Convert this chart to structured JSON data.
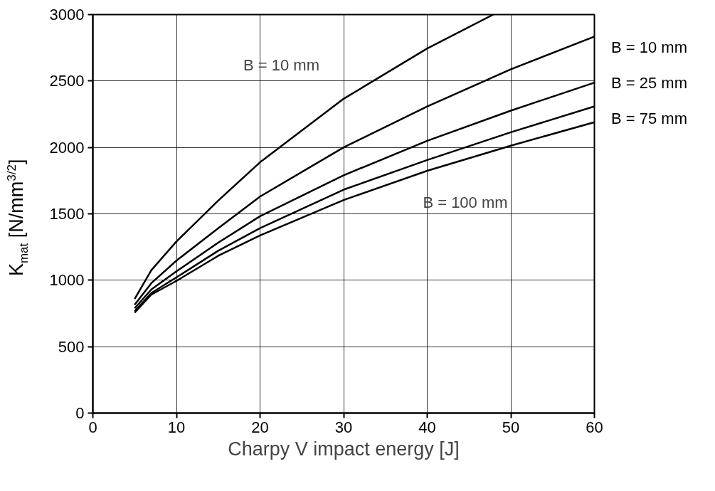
{
  "chart_data": {
    "type": "line",
    "xlabel": "Charpy V impact energy [J]",
    "ylabel": "K$_{mat}$ [N/mm$^{3/2}$]",
    "x": [
      5,
      7,
      10,
      15,
      20,
      30,
      40,
      47.9
    ],
    "series": [
      {
        "color": "#000000",
        "values": [
          859,
          1076,
          1292,
          1600,
          1888,
          2366,
          2745,
          3000
        ]
      },
      {
        "color": "#000000",
        "x": [
          5,
          7,
          10,
          15,
          20,
          30,
          40,
          50,
          60
        ],
        "values": [
          816,
          978,
          1148,
          1392,
          1630,
          2000,
          2308,
          2588,
          2835
        ]
      },
      {
        "color": "#000000",
        "x": [
          5,
          7,
          10,
          15,
          20,
          30,
          40,
          50,
          60
        ],
        "values": [
          789,
          931,
          1067,
          1283,
          1482,
          1790,
          2050,
          2277,
          2488
        ]
      },
      {
        "color": "#000000",
        "x": [
          5,
          7,
          10,
          15,
          20,
          30,
          40,
          50,
          60
        ],
        "values": [
          767,
          904,
          1022,
          1222,
          1392,
          1682,
          1905,
          2114,
          2309
        ]
      },
      {
        "color": "#000000",
        "x": [
          5,
          7,
          10,
          15,
          20,
          30,
          40,
          50,
          60
        ],
        "values": [
          756,
          892,
          995,
          1184,
          1337,
          1604,
          1824,
          2013,
          2190
        ]
      }
    ],
    "annotations": [
      "B = 10 mm",
      "B = 100 mm",
      "B = 10 mm",
      "B = 25 mm",
      "B = 75 mm"
    ],
    "xlim": [
      0,
      60
    ],
    "ylim": [
      0,
      3000
    ],
    "xticks": [
      0,
      10,
      20,
      30,
      40,
      50,
      60
    ],
    "yticks": [
      0,
      500,
      1000,
      1500,
      2000,
      2500,
      3000
    ],
    "grid": true,
    "marker": "none",
    "line_style": "solid"
  }
}
